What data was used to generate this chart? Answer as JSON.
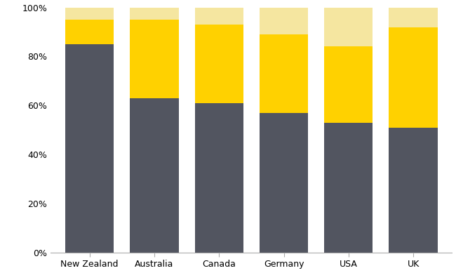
{
  "categories": [
    "New Zealand",
    "Australia",
    "Canada",
    "Germany",
    "USA",
    "UK"
  ],
  "undergraduate": [
    85,
    63,
    61,
    57,
    53,
    51
  ],
  "postgraduate": [
    10,
    32,
    32,
    32,
    31,
    41
  ],
  "other": [
    5,
    5,
    7,
    11,
    16,
    8
  ],
  "colors": {
    "undergraduate": "#525560",
    "postgraduate": "#FFD100",
    "other": "#F5E6A0"
  },
  "bar_width": 0.75,
  "ylim": [
    0,
    100
  ],
  "ytick_labels": [
    "0%",
    "20%",
    "40%",
    "60%",
    "80%",
    "100%"
  ],
  "ytick_values": [
    0,
    20,
    40,
    60,
    80,
    100
  ],
  "background_color": "#ffffff",
  "figsize": [
    6.5,
    3.89
  ],
  "dpi": 100
}
